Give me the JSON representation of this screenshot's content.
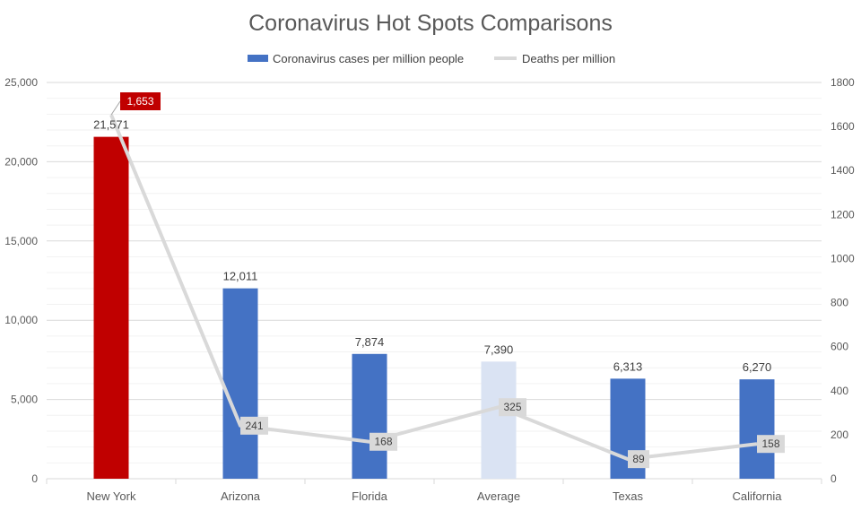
{
  "chart_data": {
    "type": "bar",
    "title": "Coronavirus Hot Spots Comparisons",
    "categories": [
      "New York",
      "Arizona",
      "Florida",
      "Average",
      "Texas",
      "California"
    ],
    "series": [
      {
        "name": "Coronavirus cases per million people",
        "type": "bar",
        "axis": "left",
        "values": [
          21571,
          12011,
          7874,
          7390,
          6313,
          6270
        ],
        "labels": [
          "21,571",
          "12,011",
          "7,874",
          "7,390",
          "6,313",
          "6,270"
        ],
        "color": "#4472c4",
        "point_colors": [
          "#c00000",
          "#4472c4",
          "#4472c4",
          "#dae3f3",
          "#4472c4",
          "#4472c4"
        ]
      },
      {
        "name": "Deaths per million",
        "type": "line",
        "axis": "right",
        "values": [
          1653,
          241,
          168,
          325,
          89,
          158
        ],
        "labels": [
          "1,653",
          "241",
          "168",
          "325",
          "89",
          "158"
        ],
        "color": "#d9d9d9",
        "label_bg": "#d9d9d9",
        "highlight_label_bg": "#c00000"
      }
    ],
    "y_left": {
      "range": [
        0,
        25000
      ],
      "ticks": [
        0,
        5000,
        10000,
        15000,
        20000,
        25000
      ],
      "tick_labels": [
        "0",
        "5,000",
        "10,000",
        "15,000",
        "20,000",
        "25,000"
      ]
    },
    "y_right": {
      "range": [
        0,
        1800
      ],
      "ticks": [
        0,
        200,
        400,
        600,
        800,
        1000,
        1200,
        1400,
        1600,
        1800
      ],
      "tick_labels": [
        "0",
        "200",
        "400",
        "600",
        "800",
        "1000",
        "1200",
        "1400",
        "1600",
        "1800"
      ]
    },
    "grid": true,
    "legend": "top"
  }
}
